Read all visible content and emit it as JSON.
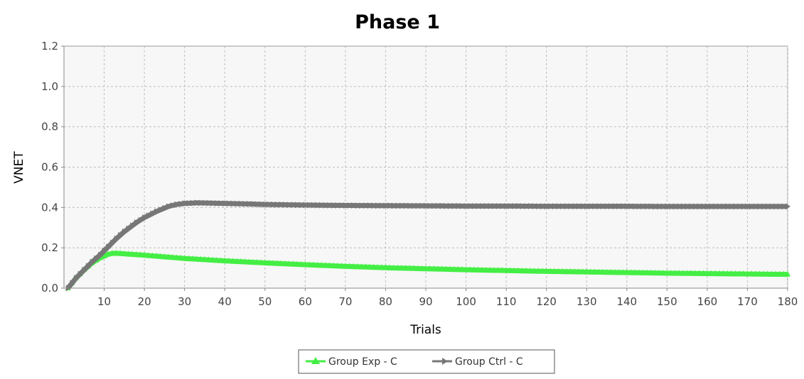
{
  "chart_data": {
    "type": "line",
    "title": "Phase 1",
    "xlabel": "Trials",
    "ylabel": "VNET",
    "xlim": [
      0,
      180
    ],
    "ylim": [
      0.0,
      1.2
    ],
    "x_ticks": [
      10,
      20,
      30,
      40,
      50,
      60,
      70,
      80,
      90,
      100,
      110,
      120,
      130,
      140,
      150,
      160,
      170,
      180
    ],
    "y_ticks": [
      "0.0",
      "0.2",
      "0.4",
      "0.6",
      "0.8",
      "1.0",
      "1.2"
    ],
    "grid": true,
    "legend_position": "bottom-center",
    "series": [
      {
        "name": "Group Exp - C",
        "color": "#44ee44",
        "marker": "triangle-up",
        "points": [
          [
            1,
            0.0
          ],
          [
            3,
            0.05
          ],
          [
            5,
            0.09
          ],
          [
            7,
            0.125
          ],
          [
            9,
            0.15
          ],
          [
            11,
            0.168
          ],
          [
            12,
            0.172
          ],
          [
            13,
            0.173
          ],
          [
            15,
            0.17
          ],
          [
            20,
            0.163
          ],
          [
            30,
            0.147
          ],
          [
            40,
            0.135
          ],
          [
            50,
            0.125
          ],
          [
            60,
            0.116
          ],
          [
            70,
            0.108
          ],
          [
            80,
            0.101
          ],
          [
            90,
            0.096
          ],
          [
            100,
            0.091
          ],
          [
            110,
            0.087
          ],
          [
            120,
            0.083
          ],
          [
            130,
            0.08
          ],
          [
            140,
            0.077
          ],
          [
            150,
            0.074
          ],
          [
            160,
            0.072
          ],
          [
            170,
            0.07
          ],
          [
            180,
            0.068
          ]
        ]
      },
      {
        "name": "Group Ctrl - C",
        "color": "#777777",
        "marker": "arrow-right",
        "points": [
          [
            1,
            0.0
          ],
          [
            3,
            0.05
          ],
          [
            5,
            0.09
          ],
          [
            7,
            0.13
          ],
          [
            9,
            0.165
          ],
          [
            11,
            0.205
          ],
          [
            13,
            0.245
          ],
          [
            15,
            0.28
          ],
          [
            18,
            0.325
          ],
          [
            20,
            0.35
          ],
          [
            23,
            0.38
          ],
          [
            26,
            0.405
          ],
          [
            28,
            0.415
          ],
          [
            30,
            0.42
          ],
          [
            33,
            0.423
          ],
          [
            36,
            0.422
          ],
          [
            40,
            0.42
          ],
          [
            45,
            0.418
          ],
          [
            50,
            0.415
          ],
          [
            60,
            0.412
          ],
          [
            70,
            0.41
          ],
          [
            80,
            0.409
          ],
          [
            90,
            0.408
          ],
          [
            100,
            0.407
          ],
          [
            110,
            0.407
          ],
          [
            120,
            0.406
          ],
          [
            130,
            0.406
          ],
          [
            140,
            0.406
          ],
          [
            150,
            0.405
          ],
          [
            160,
            0.405
          ],
          [
            170,
            0.405
          ],
          [
            180,
            0.405
          ]
        ]
      }
    ]
  }
}
